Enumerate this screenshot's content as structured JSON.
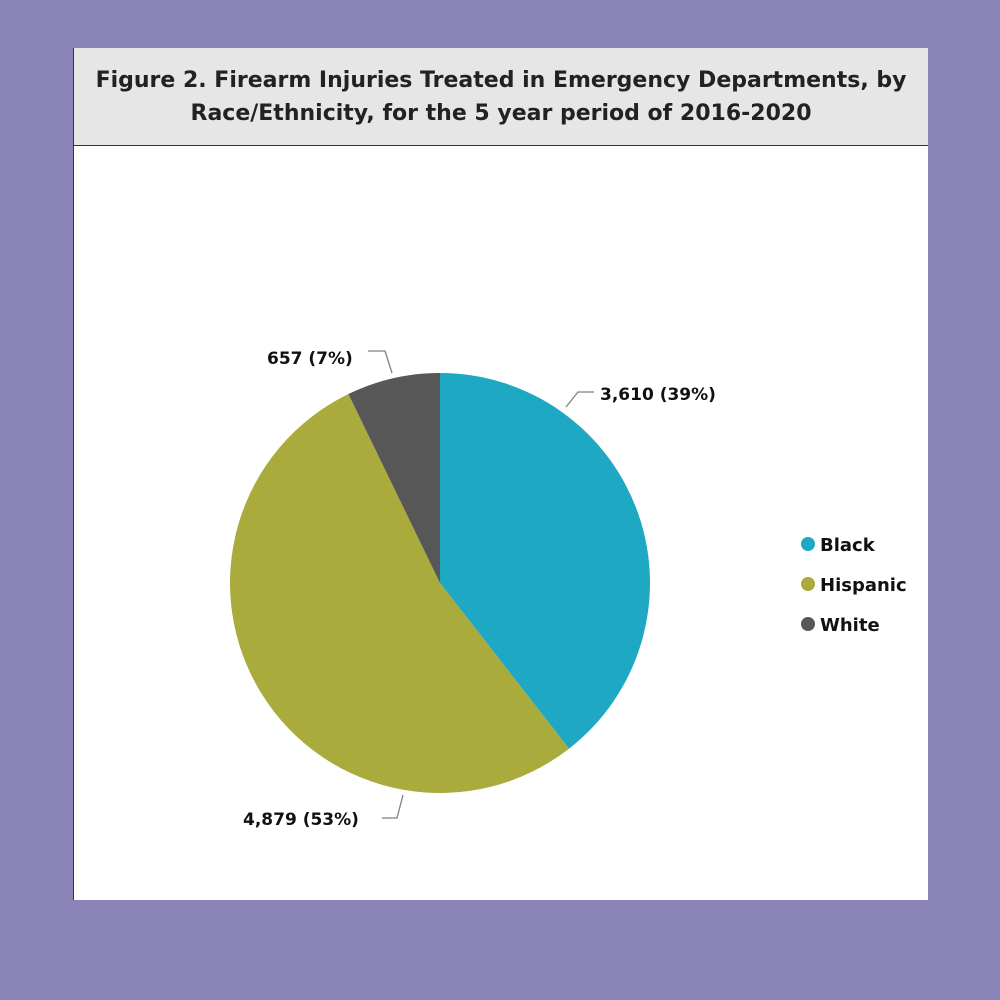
{
  "page": {
    "background_color": "#8a84b9"
  },
  "chart_data": {
    "type": "pie",
    "title_lines": [
      "Figure 2. Firearm Injuries Treated in Emergency Departments, by",
      "Race/Ethnicity, for the 5 year period of 2016-2020"
    ],
    "categories": [
      "Black",
      "Hispanic",
      "White"
    ],
    "values": [
      3610,
      4879,
      657
    ],
    "data_labels": [
      "3,610 (39%)",
      "4,879 (53%)",
      "657 (7%)"
    ],
    "colors": [
      "#1ea8c4",
      "#a9ab3d",
      "#575757"
    ],
    "start_angle_deg": 0,
    "direction": "clockwise",
    "legend": {
      "position": "right",
      "entries": [
        "Black",
        "Hispanic",
        "White"
      ]
    }
  }
}
